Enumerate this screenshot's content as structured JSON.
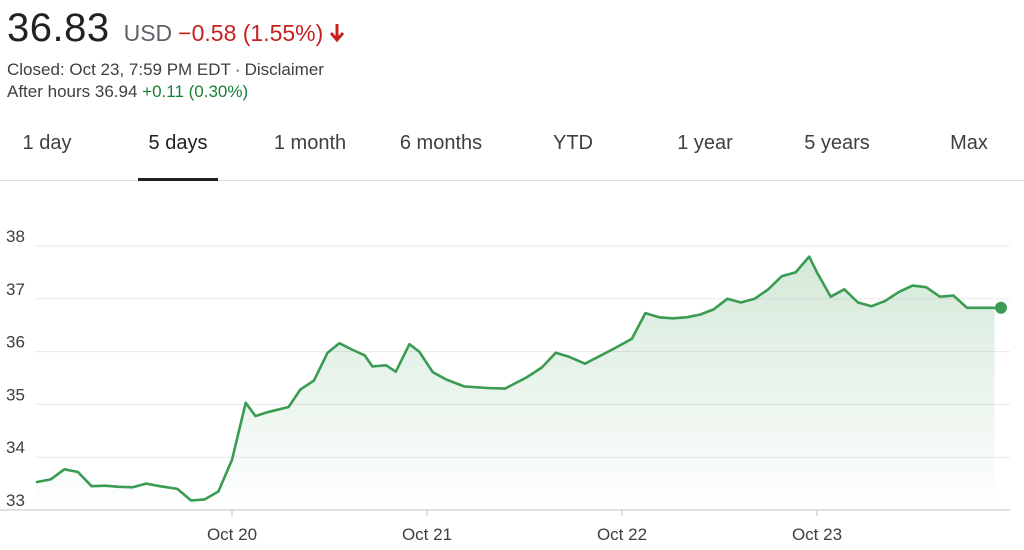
{
  "quote": {
    "price": "36.83",
    "currency": "USD",
    "change": "−0.58 (1.55%)",
    "arrow_icon": "arrow-down-icon",
    "closed_text": "Closed: Oct 23, 7:59 PM EDT",
    "separator": "·",
    "disclaimer": "Disclaimer",
    "after_hours_label": "After hours 36.94",
    "after_hours_change": "+0.11 (0.30%)"
  },
  "tabs": [
    "1 day",
    "5 days",
    "1 month",
    "6 months",
    "YTD",
    "1 year",
    "5 years",
    "Max"
  ],
  "active_tab": "5 days",
  "colors": {
    "line": "#3a9b52",
    "down": "#c5221f",
    "up": "#188038"
  },
  "chart_data": {
    "type": "area",
    "y_ticks": [
      33,
      34,
      35,
      36,
      37,
      38
    ],
    "ylim": [
      33,
      38.2
    ],
    "x_ticks": [
      "Oct 20",
      "Oct 21",
      "Oct 22",
      "Oct 23"
    ],
    "x_tick_positions": [
      1,
      2,
      3,
      4
    ],
    "grid": true,
    "series": [
      {
        "x": [
          0,
          0.07,
          0.14,
          0.21,
          0.28,
          0.35,
          0.42,
          0.49,
          0.56,
          0.63,
          0.72,
          0.79,
          0.86,
          0.93,
          1.0,
          1.07,
          1.12,
          1.19,
          1.29,
          1.35,
          1.42,
          1.49,
          1.55,
          1.62,
          1.68,
          1.72,
          1.79,
          1.84,
          1.91,
          1.96,
          2.03,
          2.1,
          2.19,
          2.31,
          2.4,
          2.51,
          2.59,
          2.66,
          2.73,
          2.81,
          2.95,
          3.05,
          3.12,
          3.19,
          3.26,
          3.33,
          3.4,
          3.47,
          3.54,
          3.61,
          3.68,
          3.75,
          3.82,
          3.89,
          3.96,
          4.0,
          4.07,
          4.14,
          4.21,
          4.28,
          4.35,
          4.42,
          4.49,
          4.56,
          4.63,
          4.7,
          4.77,
          4.84,
          4.91
        ],
        "y": [
          33.53,
          33.58,
          33.77,
          33.72,
          33.45,
          33.46,
          33.44,
          33.43,
          33.5,
          33.45,
          33.4,
          33.18,
          33.2,
          33.35,
          33.95,
          35.03,
          34.78,
          34.86,
          34.95,
          35.28,
          35.45,
          35.98,
          36.16,
          36.03,
          35.93,
          35.72,
          35.74,
          35.62,
          36.14,
          36.0,
          35.61,
          35.47,
          35.34,
          35.31,
          35.3,
          35.51,
          35.7,
          35.98,
          35.9,
          35.77,
          36.04,
          36.24,
          36.73,
          36.65,
          36.63,
          36.65,
          36.7,
          36.8,
          37.0,
          36.93,
          37.0,
          37.18,
          37.43,
          37.5,
          37.8,
          37.5,
          37.04,
          37.18,
          36.93,
          36.86,
          36.96,
          37.13,
          37.25,
          37.22,
          37.04,
          37.06,
          36.83,
          36.83,
          36.83
        ]
      }
    ]
  }
}
